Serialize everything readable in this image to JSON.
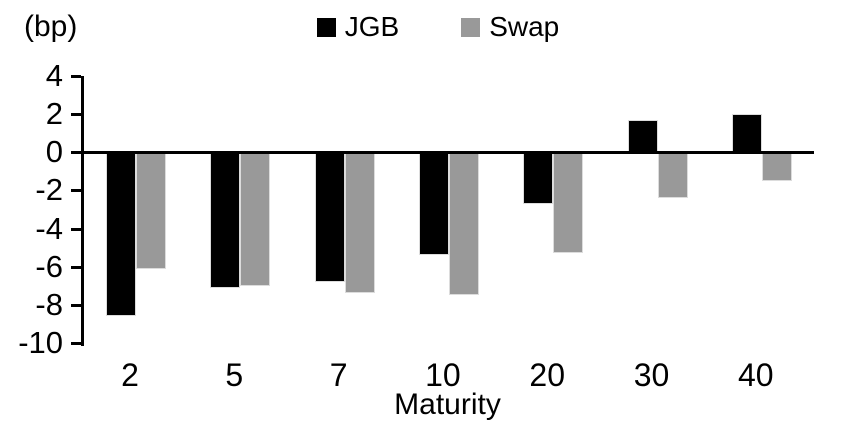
{
  "chart_data": {
    "type": "bar",
    "title": "",
    "unit_label": "(bp)",
    "xlabel": "Maturity",
    "categories": [
      "2",
      "5",
      "7",
      "10",
      "20",
      "30",
      "40"
    ],
    "series": [
      {
        "name": "JGB",
        "color": "#000000",
        "values": [
          -8.6,
          -7.1,
          -6.8,
          -5.4,
          -2.7,
          1.7,
          2.0
        ]
      },
      {
        "name": "Swap",
        "color": "#999999",
        "values": [
          -6.1,
          -7.0,
          -7.4,
          -7.5,
          -5.3,
          -2.4,
          -1.5
        ]
      }
    ],
    "ylim": [
      -10,
      4
    ],
    "yticks": [
      4,
      2,
      0,
      -2,
      -4,
      -6,
      -8,
      -10
    ],
    "ytick_step": 2,
    "grid": false,
    "legend_position": "top",
    "axis_color": "#000000",
    "bar_border_color": "#dcdcdc"
  }
}
